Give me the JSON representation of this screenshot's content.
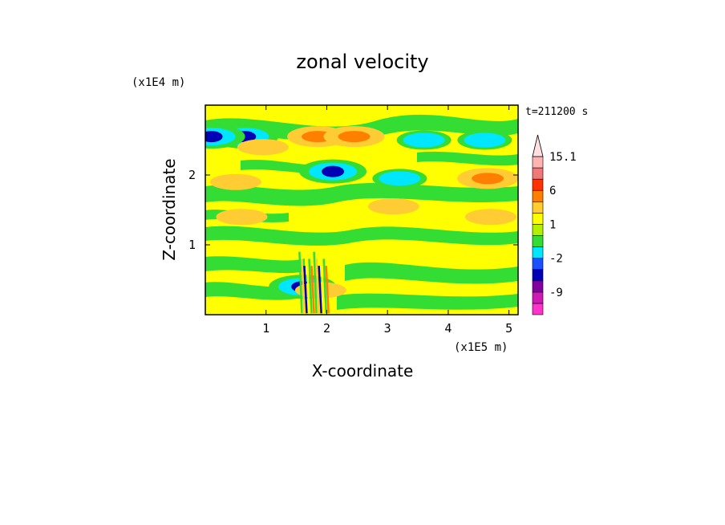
{
  "chart_data": {
    "type": "heatmap",
    "title": "zonal velocity",
    "xlabel": "X-coordinate",
    "ylabel": "Z-coordinate",
    "x_unit": "(x1E5 m)",
    "y_unit": "(x1E4 m)",
    "time_label": "t=211200 s",
    "xlim": [
      0,
      5.15
    ],
    "ylim": [
      0,
      3.0
    ],
    "x_ticks": [
      "1",
      "2",
      "3",
      "4",
      "5"
    ],
    "y_ticks": [
      "1",
      "2"
    ],
    "x_tick_values": [
      1,
      2,
      3,
      4,
      5
    ],
    "y_tick_values": [
      1,
      2
    ],
    "colorbar": {
      "levels": [
        -15,
        -12,
        -9,
        -6,
        -4,
        -2,
        -1,
        0,
        1,
        2,
        3,
        6,
        9,
        12,
        15.1
      ],
      "labels": [
        "15.1",
        "6",
        "1",
        "-2",
        "-9"
      ],
      "label_values": [
        15.1,
        6,
        1,
        -2,
        -9
      ],
      "colors": [
        "#ff33cc",
        "#cc1ab3",
        "#8000a0",
        "#0000b4",
        "#1a50ff",
        "#00e6ff",
        "#33dd33",
        "#b3f000",
        "#ffff00",
        "#ffcc33",
        "#ff8000",
        "#ff3300",
        "#f07878",
        "#ffb3b3"
      ],
      "extend": "max"
    },
    "features": [
      {
        "x": 0.65,
        "z": 2.55,
        "value": -5
      },
      {
        "x": 0.95,
        "z": 2.4,
        "value": 2
      },
      {
        "x": 1.85,
        "z": 2.55,
        "value": 5
      },
      {
        "x": 2.45,
        "z": 2.55,
        "value": 4
      },
      {
        "x": 3.6,
        "z": 2.5,
        "value": -2
      },
      {
        "x": 4.6,
        "z": 2.5,
        "value": -2
      },
      {
        "x": 2.1,
        "z": 2.05,
        "value": -5
      },
      {
        "x": 3.2,
        "z": 1.95,
        "value": -2
      },
      {
        "x": 4.65,
        "z": 1.95,
        "value": 4
      },
      {
        "x": 0.1,
        "z": 2.55,
        "value": -5
      },
      {
        "x": 0.5,
        "z": 1.9,
        "value": 3
      },
      {
        "x": 3.1,
        "z": 1.55,
        "value": 2
      },
      {
        "x": 4.7,
        "z": 1.4,
        "value": 2
      },
      {
        "x": 0.6,
        "z": 1.4,
        "value": 2
      },
      {
        "x": 1.6,
        "z": 0.4,
        "value": -5
      },
      {
        "x": 1.9,
        "z": 0.35,
        "value": 3
      }
    ]
  }
}
